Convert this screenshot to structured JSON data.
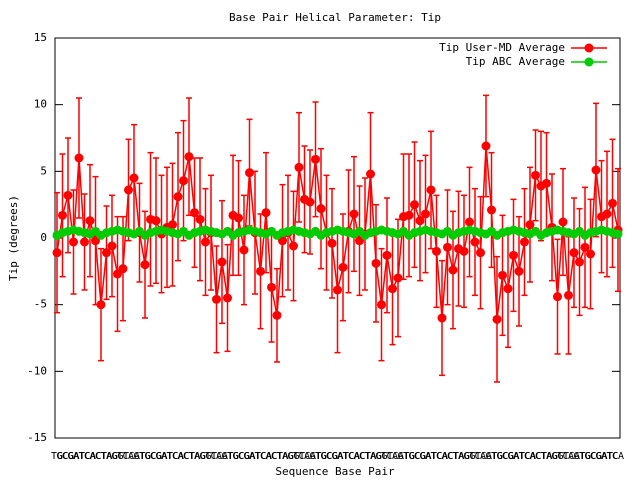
{
  "chart_data": {
    "type": "line",
    "title": "Base Pair Helical Parameter: Tip",
    "x_label": "Sequence Base Pair",
    "y_label": "Tip (degrees)",
    "ylim": [
      -15,
      15
    ],
    "yticks": [
      -15,
      -10,
      -5,
      0,
      5,
      10,
      15
    ],
    "legend": "top-right",
    "categories": [
      "TG",
      "GC",
      "CG",
      "GA",
      "AT",
      "TC",
      "CA",
      "AC",
      "CT",
      "TA",
      "AG",
      "GG",
      "TT",
      "CC",
      "AA",
      "GT",
      "TG",
      "GC",
      "CG",
      "GA",
      "AT",
      "TC",
      "CA",
      "AC",
      "CT",
      "TA",
      "AG",
      "GG",
      "TT",
      "CC",
      "AA",
      "GT",
      "TG",
      "GC",
      "CG",
      "GA",
      "AT",
      "TC",
      "CA",
      "AC",
      "CT",
      "TA",
      "AG",
      "GG",
      "TT",
      "CC",
      "AA",
      "GT",
      "TG",
      "GC",
      "CG",
      "GA",
      "AT",
      "TC",
      "CA",
      "AC",
      "CT",
      "TA",
      "AG",
      "GG",
      "TT",
      "CC",
      "AA",
      "GT",
      "TG",
      "GC",
      "CG",
      "GA",
      "AT",
      "TC",
      "CA",
      "AC",
      "CT",
      "TA",
      "AG",
      "GG",
      "TT",
      "CC",
      "AA",
      "GT",
      "TG",
      "GC",
      "CG",
      "GA",
      "AT",
      "TC",
      "CA",
      "AC",
      "CT",
      "TA",
      "AG",
      "GG",
      "TT",
      "CC",
      "AA",
      "GT",
      "TG",
      "GC",
      "CG",
      "GA",
      "AT",
      "TC",
      "CA"
    ],
    "series": [
      {
        "name": "Tip User-MD Average",
        "color": "#ff0000",
        "values": [
          -1.1,
          1.7,
          3.2,
          -0.3,
          6.0,
          -0.3,
          1.3,
          -0.2,
          -5.0,
          -1.1,
          -0.6,
          -2.7,
          -2.3,
          3.6,
          4.5,
          0.4,
          -2.0,
          1.4,
          1.3,
          0.3,
          0.8,
          1.0,
          3.1,
          4.3,
          6.1,
          1.9,
          1.4,
          -0.3,
          0.4,
          -4.6,
          -1.8,
          -4.5,
          1.7,
          1.5,
          -0.9,
          4.9,
          0.4,
          -2.5,
          1.9,
          -3.7,
          -5.8,
          -0.2,
          0.4,
          -0.6,
          5.3,
          2.9,
          2.7,
          5.9,
          2.2,
          0.4,
          -0.4,
          -3.9,
          -2.2,
          0.5,
          1.8,
          -0.2,
          0.3,
          4.8,
          -1.9,
          -5.0,
          -1.3,
          -3.8,
          -3.0,
          1.6,
          1.7,
          2.5,
          1.3,
          1.8,
          3.6,
          -1.0,
          -6.0,
          -0.7,
          -2.4,
          -0.8,
          -1.0,
          1.2,
          -0.3,
          -1.1,
          6.9,
          2.1,
          -6.1,
          -2.8,
          -3.8,
          -1.3,
          -2.5,
          -0.3,
          1.0,
          4.7,
          3.9,
          4.1,
          0.8,
          -4.4,
          1.2,
          -4.3,
          -1.1,
          -1.8,
          -0.7,
          -1.2,
          5.1,
          1.6,
          1.8,
          2.6,
          0.6
        ],
        "errors": [
          4.5,
          4.6,
          4.3,
          3.9,
          4.5,
          3.6,
          4.2,
          4.8,
          4.2,
          3.5,
          3.8,
          4.3,
          3.9,
          3.8,
          4.0,
          3.7,
          4.0,
          5.0,
          4.7,
          4.4,
          4.5,
          4.6,
          4.8,
          4.5,
          4.4,
          4.1,
          4.6,
          4.0,
          4.3,
          4.0,
          4.6,
          4.0,
          4.5,
          4.3,
          4.1,
          4.0,
          4.6,
          4.3,
          4.5,
          4.1,
          3.5,
          4.2,
          4.3,
          4.1,
          4.1,
          4.0,
          3.9,
          4.3,
          4.5,
          4.3,
          4.1,
          4.7,
          4.0,
          4.6,
          4.3,
          4.1,
          4.2,
          4.6,
          4.4,
          4.2,
          4.3,
          4.2,
          4.4,
          4.7,
          4.6,
          4.7,
          4.5,
          4.4,
          4.4,
          4.2,
          4.3,
          4.3,
          4.4,
          4.3,
          4.2,
          4.1,
          4.0,
          4.2,
          3.8,
          4.3,
          4.7,
          4.5,
          4.4,
          4.2,
          4.1,
          4.0,
          4.3,
          3.4,
          4.1,
          3.8,
          4.0,
          4.3,
          4.0,
          4.4,
          4.1,
          4.0,
          4.5,
          4.1,
          5.0,
          4.2,
          4.7,
          4.8,
          4.6
        ]
      },
      {
        "name": "Tip ABC Average",
        "color": "#00cc00",
        "values": [
          0.2,
          0.4,
          0.5,
          0.6,
          0.5,
          0.4,
          0.3,
          0.5,
          0.2,
          0.4,
          0.5,
          0.6,
          0.5,
          0.4,
          0.3,
          0.5,
          0.2,
          0.4,
          0.5,
          0.6,
          0.5,
          0.4,
          0.3,
          0.5,
          0.2,
          0.4,
          0.5,
          0.6,
          0.5,
          0.4,
          0.3,
          0.5,
          0.2,
          0.4,
          0.5,
          0.6,
          0.5,
          0.4,
          0.3,
          0.5,
          0.2,
          0.4,
          0.5,
          0.6,
          0.5,
          0.4,
          0.3,
          0.5,
          0.2,
          0.4,
          0.5,
          0.6,
          0.5,
          0.4,
          0.3,
          0.5,
          0.2,
          0.4,
          0.5,
          0.6,
          0.5,
          0.4,
          0.3,
          0.5,
          0.2,
          0.4,
          0.5,
          0.6,
          0.5,
          0.4,
          0.3,
          0.5,
          0.2,
          0.4,
          0.5,
          0.6,
          0.5,
          0.4,
          0.3,
          0.5,
          0.2,
          0.4,
          0.5,
          0.6,
          0.5,
          0.4,
          0.3,
          0.5,
          0.2,
          0.4,
          0.5,
          0.6,
          0.5,
          0.4,
          0.3,
          0.5,
          0.2,
          0.4,
          0.5,
          0.6,
          0.5,
          0.4,
          0.3
        ]
      }
    ]
  }
}
